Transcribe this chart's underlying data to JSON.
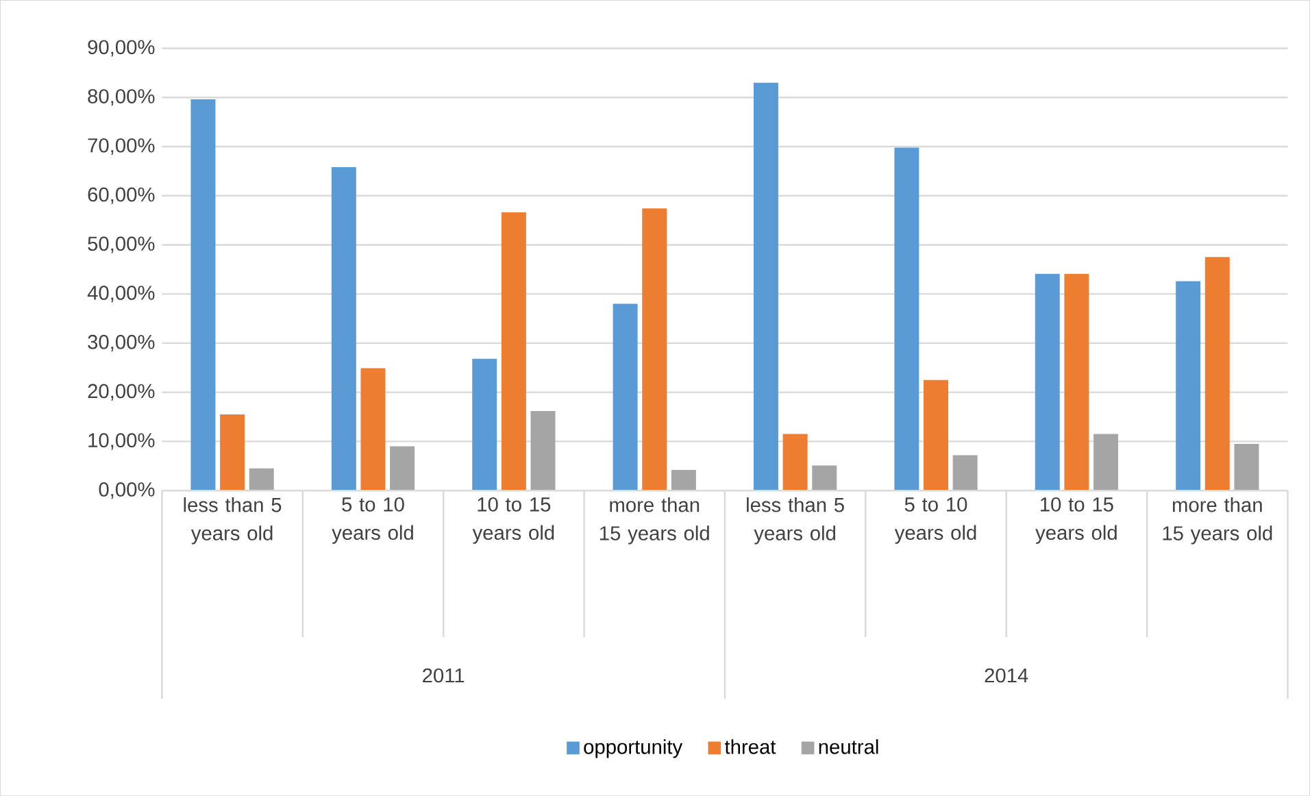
{
  "chart_data": {
    "type": "bar",
    "categories": [
      "less than 5 years old",
      "5 to 10 years old",
      "10 to 15 years old",
      "more than 15 years old",
      "less than 5 years old",
      "5 to 10 years old",
      "10 to 15 years old",
      "more than 15 years old"
    ],
    "series": [
      {
        "name": "opportunity",
        "color": "#5b9bd5",
        "values": [
          79.6,
          65.8,
          26.8,
          38.0,
          83.0,
          69.8,
          44.1,
          42.6
        ]
      },
      {
        "name": "threat",
        "color": "#ed7d31",
        "values": [
          15.5,
          24.9,
          56.6,
          57.4,
          11.5,
          22.5,
          44.1,
          47.5
        ]
      },
      {
        "name": "neutral",
        "color": "#a5a5a5",
        "values": [
          4.5,
          9.0,
          16.2,
          4.2,
          5.1,
          7.2,
          11.5,
          9.5
        ]
      }
    ],
    "ylim": [
      0,
      90
    ],
    "yticks": [
      {
        "value": 0,
        "label": "0,00%"
      },
      {
        "value": 10,
        "label": "10,00%"
      },
      {
        "value": 20,
        "label": "20,00%"
      },
      {
        "value": 30,
        "label": "30,00%"
      },
      {
        "value": 40,
        "label": "40,00%"
      },
      {
        "value": 50,
        "label": "50,00%"
      },
      {
        "value": 60,
        "label": "60,00%"
      },
      {
        "value": 70,
        "label": "70,00%"
      },
      {
        "value": 80,
        "label": "80,00%"
      },
      {
        "value": 90,
        "label": "90,00%"
      }
    ],
    "annotations": [
      "2011",
      "2014"
    ],
    "grid": "y",
    "legend": "bottom"
  }
}
